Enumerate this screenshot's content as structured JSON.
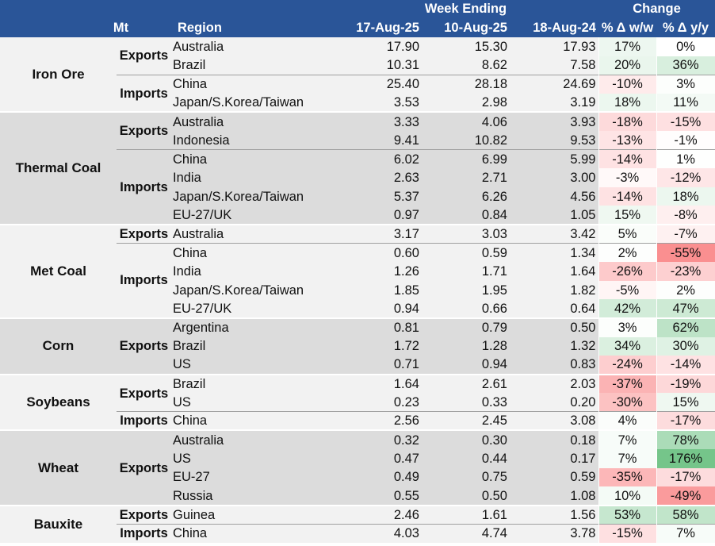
{
  "header": {
    "week_ending": "Week Ending",
    "change": "Change",
    "mt": "Mt",
    "region": "Region",
    "date1": "17-Aug-25",
    "date2": "10-Aug-25",
    "date3": "18-Aug-24",
    "ww": "% Δ w/w",
    "yy": "% Δ y/y"
  },
  "groups": [
    {
      "name": "Iron Ore",
      "flows": [
        {
          "name": "Exports",
          "rows": [
            {
              "region": "Australia",
              "v1": "17.90",
              "v2": "15.30",
              "v3": "17.93",
              "ww": "17%",
              "yy": "0%",
              "ww_n": 17,
              "yy_n": 0
            },
            {
              "region": "Brazil",
              "v1": "10.31",
              "v2": "8.62",
              "v3": "7.58",
              "ww": "20%",
              "yy": "36%",
              "ww_n": 20,
              "yy_n": 36
            }
          ]
        },
        {
          "name": "Imports",
          "rows": [
            {
              "region": "China",
              "v1": "25.40",
              "v2": "28.18",
              "v3": "24.69",
              "ww": "-10%",
              "yy": "3%",
              "ww_n": -10,
              "yy_n": 3
            },
            {
              "region": "Japan/S.Korea/Taiwan",
              "v1": "3.53",
              "v2": "2.98",
              "v3": "3.19",
              "ww": "18%",
              "yy": "11%",
              "ww_n": 18,
              "yy_n": 11
            }
          ]
        }
      ]
    },
    {
      "name": "Thermal Coal",
      "flows": [
        {
          "name": "Exports",
          "rows": [
            {
              "region": "Australia",
              "v1": "3.33",
              "v2": "4.06",
              "v3": "3.93",
              "ww": "-18%",
              "yy": "-15%",
              "ww_n": -18,
              "yy_n": -15
            },
            {
              "region": "Indonesia",
              "v1": "9.41",
              "v2": "10.82",
              "v3": "9.53",
              "ww": "-13%",
              "yy": "-1%",
              "ww_n": -13,
              "yy_n": -1
            }
          ]
        },
        {
          "name": "Imports",
          "rows": [
            {
              "region": "China",
              "v1": "6.02",
              "v2": "6.99",
              "v3": "5.99",
              "ww": "-14%",
              "yy": "1%",
              "ww_n": -14,
              "yy_n": 1
            },
            {
              "region": "India",
              "v1": "2.63",
              "v2": "2.71",
              "v3": "3.00",
              "ww": "-3%",
              "yy": "-12%",
              "ww_n": -3,
              "yy_n": -12
            },
            {
              "region": "Japan/S.Korea/Taiwan",
              "v1": "5.37",
              "v2": "6.26",
              "v3": "4.56",
              "ww": "-14%",
              "yy": "18%",
              "ww_n": -14,
              "yy_n": 18
            },
            {
              "region": "EU-27/UK",
              "v1": "0.97",
              "v2": "0.84",
              "v3": "1.05",
              "ww": "15%",
              "yy": "-8%",
              "ww_n": 15,
              "yy_n": -8
            }
          ]
        }
      ]
    },
    {
      "name": "Met Coal",
      "flows": [
        {
          "name": "Exports",
          "rows": [
            {
              "region": "Australia",
              "v1": "3.17",
              "v2": "3.03",
              "v3": "3.42",
              "ww": "5%",
              "yy": "-7%",
              "ww_n": 5,
              "yy_n": -7
            }
          ]
        },
        {
          "name": "Imports",
          "rows": [
            {
              "region": "China",
              "v1": "0.60",
              "v2": "0.59",
              "v3": "1.34",
              "ww": "2%",
              "yy": "-55%",
              "ww_n": 2,
              "yy_n": -55
            },
            {
              "region": "India",
              "v1": "1.26",
              "v2": "1.71",
              "v3": "1.64",
              "ww": "-26%",
              "yy": "-23%",
              "ww_n": -26,
              "yy_n": -23
            },
            {
              "region": "Japan/S.Korea/Taiwan",
              "v1": "1.85",
              "v2": "1.95",
              "v3": "1.82",
              "ww": "-5%",
              "yy": "2%",
              "ww_n": -5,
              "yy_n": 2
            },
            {
              "region": "EU-27/UK",
              "v1": "0.94",
              "v2": "0.66",
              "v3": "0.64",
              "ww": "42%",
              "yy": "47%",
              "ww_n": 42,
              "yy_n": 47
            }
          ]
        }
      ]
    },
    {
      "name": "Corn",
      "flows": [
        {
          "name": "Exports",
          "rows": [
            {
              "region": "Argentina",
              "v1": "0.81",
              "v2": "0.79",
              "v3": "0.50",
              "ww": "3%",
              "yy": "62%",
              "ww_n": 3,
              "yy_n": 62
            },
            {
              "region": "Brazil",
              "v1": "1.72",
              "v2": "1.28",
              "v3": "1.32",
              "ww": "34%",
              "yy": "30%",
              "ww_n": 34,
              "yy_n": 30
            },
            {
              "region": "US",
              "v1": "0.71",
              "v2": "0.94",
              "v3": "0.83",
              "ww": "-24%",
              "yy": "-14%",
              "ww_n": -24,
              "yy_n": -14
            }
          ]
        }
      ]
    },
    {
      "name": "Soybeans",
      "flows": [
        {
          "name": "Exports",
          "rows": [
            {
              "region": "Brazil",
              "v1": "1.64",
              "v2": "2.61",
              "v3": "2.03",
              "ww": "-37%",
              "yy": "-19%",
              "ww_n": -37,
              "yy_n": -19
            },
            {
              "region": "US",
              "v1": "0.23",
              "v2": "0.33",
              "v3": "0.20",
              "ww": "-30%",
              "yy": "15%",
              "ww_n": -30,
              "yy_n": 15
            }
          ]
        },
        {
          "name": "Imports",
          "rows": [
            {
              "region": "China",
              "v1": "2.56",
              "v2": "2.45",
              "v3": "3.08",
              "ww": "4%",
              "yy": "-17%",
              "ww_n": 4,
              "yy_n": -17
            }
          ]
        }
      ]
    },
    {
      "name": "Wheat",
      "flows": [
        {
          "name": "Exports",
          "rows": [
            {
              "region": "Australia",
              "v1": "0.32",
              "v2": "0.30",
              "v3": "0.18",
              "ww": "7%",
              "yy": "78%",
              "ww_n": 7,
              "yy_n": 78
            },
            {
              "region": "US",
              "v1": "0.47",
              "v2": "0.44",
              "v3": "0.17",
              "ww": "7%",
              "yy": "176%",
              "ww_n": 7,
              "yy_n": 176
            },
            {
              "region": "EU-27",
              "v1": "0.49",
              "v2": "0.75",
              "v3": "0.59",
              "ww": "-35%",
              "yy": "-17%",
              "ww_n": -35,
              "yy_n": -17
            },
            {
              "region": "Russia",
              "v1": "0.55",
              "v2": "0.50",
              "v3": "1.08",
              "ww": "10%",
              "yy": "-49%",
              "ww_n": 10,
              "yy_n": -49
            }
          ]
        }
      ]
    },
    {
      "name": "Bauxite",
      "flows": [
        {
          "name": "Exports",
          "rows": [
            {
              "region": "Guinea",
              "v1": "2.46",
              "v2": "1.61",
              "v3": "1.56",
              "ww": "53%",
              "yy": "58%",
              "ww_n": 53,
              "yy_n": 58
            }
          ]
        },
        {
          "name": "Imports",
          "rows": [
            {
              "region": "China",
              "v1": "4.03",
              "v2": "4.74",
              "v3": "3.78",
              "ww": "-15%",
              "yy": "7%",
              "ww_n": -15,
              "yy_n": 7
            }
          ]
        }
      ]
    }
  ],
  "colors": {
    "header_bg": "#2a5598",
    "header_text": "#ffffff",
    "group_light": "#f2f2f2",
    "group_dark": "#dcdcdc",
    "positive": "#63be7b",
    "negative": "#f8696b",
    "neutral": "#ffffff"
  }
}
